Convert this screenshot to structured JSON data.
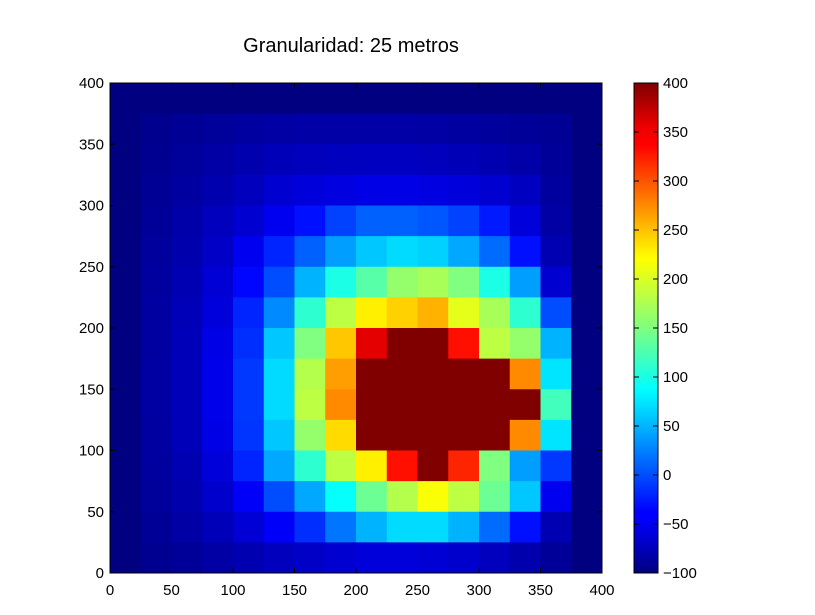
{
  "chart_data": {
    "type": "heatmap",
    "title": "Granularidad: 25 metros",
    "xlabel": "",
    "ylabel": "",
    "xlim": [
      0,
      400
    ],
    "ylim": [
      0,
      400
    ],
    "cell_size": 25,
    "x_ticks": [
      0,
      50,
      100,
      150,
      200,
      250,
      300,
      350,
      400
    ],
    "y_ticks": [
      0,
      50,
      100,
      150,
      200,
      250,
      300,
      350,
      400
    ],
    "colormap": "jet",
    "colorbar": {
      "min": -100,
      "max": 400,
      "ticks": [
        -100,
        -50,
        0,
        50,
        100,
        150,
        200,
        250,
        300,
        350,
        400
      ]
    },
    "grid": false,
    "rows_order": "top_to_bottom (y=375..0)",
    "z": [
      [
        -100,
        -100,
        -100,
        -100,
        -100,
        -100,
        -100,
        -100,
        -100,
        -100,
        -100,
        -100,
        -100,
        -100,
        -100,
        -100
      ],
      [
        -100,
        -93,
        -90,
        -87,
        -84,
        -82,
        -81,
        -81,
        -81,
        -81,
        -82,
        -84,
        -86,
        -88,
        -90,
        -100
      ],
      [
        -100,
        -92,
        -87,
        -82,
        -77,
        -72,
        -70,
        -69,
        -68,
        -68,
        -70,
        -73,
        -76,
        -80,
        -88,
        -100
      ],
      [
        -100,
        -90,
        -84,
        -77,
        -70,
        -60,
        -55,
        -52,
        -50,
        -50,
        -52,
        -55,
        -60,
        -68,
        -85,
        -100
      ],
      [
        -100,
        -88,
        -80,
        -70,
        -60,
        -45,
        -30,
        -5,
        10,
        10,
        5,
        -5,
        -25,
        -55,
        -82,
        -100
      ],
      [
        -100,
        -86,
        -78,
        -65,
        -45,
        -20,
        10,
        40,
        60,
        70,
        65,
        45,
        15,
        -30,
        -75,
        -100
      ],
      [
        -100,
        -85,
        -75,
        -58,
        -35,
        0,
        50,
        100,
        130,
        160,
        170,
        150,
        100,
        40,
        -60,
        -100
      ],
      [
        -100,
        -84,
        -73,
        -55,
        -20,
        30,
        110,
        180,
        220,
        235,
        250,
        200,
        170,
        110,
        0,
        -100
      ],
      [
        -100,
        -84,
        -72,
        -50,
        -15,
        60,
        150,
        240,
        350,
        400,
        400,
        330,
        180,
        160,
        50,
        -100
      ],
      [
        -100,
        -83,
        -72,
        -48,
        -10,
        70,
        175,
        260,
        400,
        400,
        400,
        400,
        400,
        270,
        75,
        -100
      ],
      [
        -100,
        -83,
        -72,
        -48,
        -10,
        70,
        180,
        270,
        400,
        400,
        400,
        400,
        400,
        400,
        120,
        -100
      ],
      [
        -100,
        -84,
        -72,
        -50,
        -12,
        60,
        160,
        230,
        400,
        400,
        400,
        400,
        400,
        270,
        75,
        -100
      ],
      [
        -100,
        -85,
        -75,
        -55,
        -20,
        45,
        110,
        180,
        220,
        330,
        400,
        320,
        150,
        40,
        -10,
        -100
      ],
      [
        -100,
        -87,
        -78,
        -62,
        -40,
        0,
        45,
        90,
        140,
        175,
        210,
        180,
        140,
        60,
        -45,
        -100
      ],
      [
        -100,
        -89,
        -82,
        -72,
        -58,
        -40,
        -15,
        20,
        50,
        70,
        70,
        50,
        15,
        -30,
        -75,
        -100
      ],
      [
        -100,
        -92,
        -88,
        -82,
        -76,
        -70,
        -65,
        -60,
        -55,
        -55,
        -58,
        -62,
        -70,
        -78,
        -88,
        -100
      ]
    ]
  }
}
